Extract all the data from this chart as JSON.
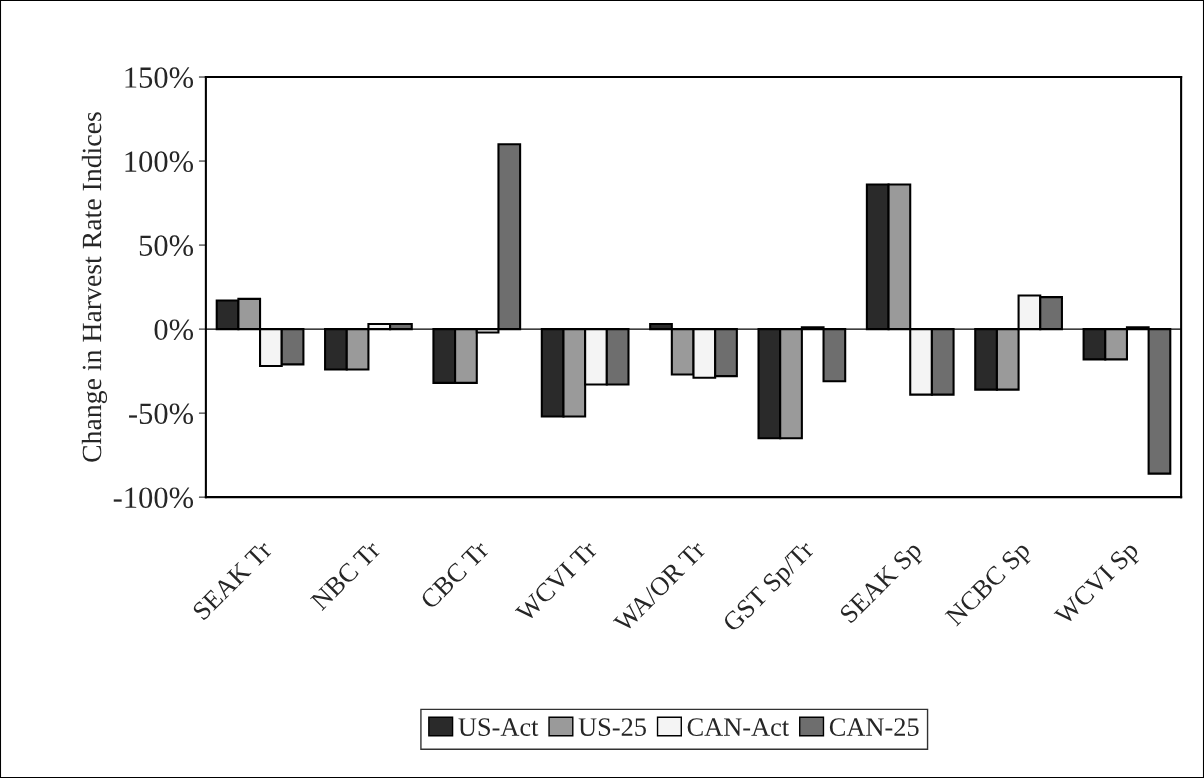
{
  "chart_data": {
    "type": "bar",
    "ylabel": "Change in Harvest Rate Indices",
    "categories": [
      "SEAK Tr",
      "NBC Tr",
      "CBC Tr",
      "WCVI Tr",
      "WA/OR Tr",
      "GST Sp/Tr",
      "SEAK Sp",
      "NCBC Sp",
      "WCVI Sp"
    ],
    "series": [
      {
        "name": "US-Act",
        "color": "#2a2a2a",
        "values": [
          17,
          -24,
          -32,
          -52,
          3,
          -65,
          86,
          -36,
          -18
        ]
      },
      {
        "name": "US-25",
        "color": "#9a9a9a",
        "values": [
          18,
          -24,
          -32,
          -52,
          -27,
          -65,
          86,
          -36,
          -18
        ]
      },
      {
        "name": "CAN-Act",
        "color": "#f4f4f4",
        "values": [
          -22,
          3,
          -2,
          -33,
          -29,
          1,
          -39,
          20,
          1
        ]
      },
      {
        "name": "CAN-25",
        "color": "#6e6e6e",
        "values": [
          -21,
          3,
          110,
          -33,
          -28,
          -31,
          -39,
          19,
          -86
        ]
      }
    ],
    "ylim": [
      -100,
      150
    ],
    "yticks": [
      {
        "value": -100,
        "label": "-100%"
      },
      {
        "value": -50,
        "label": "-50%"
      },
      {
        "value": 0,
        "label": "0%"
      },
      {
        "value": 50,
        "label": "50%"
      },
      {
        "value": 100,
        "label": "100%"
      },
      {
        "value": 150,
        "label": "150%"
      }
    ],
    "ref_lines": [
      {
        "axis": "y",
        "value": 0
      }
    ],
    "legend": "bottom",
    "grid": false
  }
}
